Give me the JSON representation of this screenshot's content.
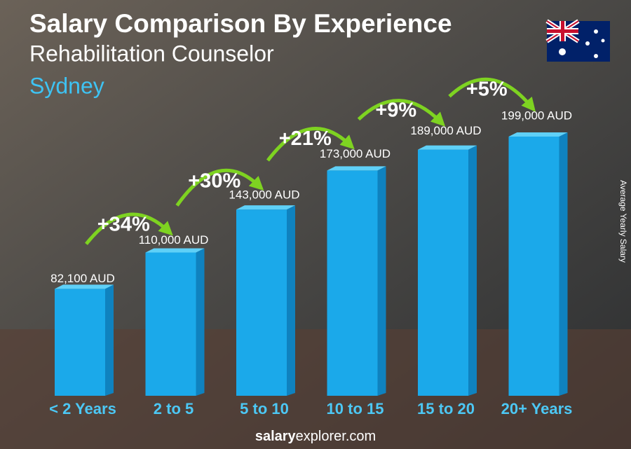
{
  "chart_data": {
    "type": "bar",
    "title": "Salary Comparison By Experience",
    "subtitle": "Rehabilitation Counselor",
    "city": "Sydney",
    "y_axis_label": "Average Yearly Salary",
    "categories": [
      "< 2 Years",
      "2 to 5",
      "5 to 10",
      "10 to 15",
      "15 to 20",
      "20+ Years"
    ],
    "values": [
      82100,
      110000,
      143000,
      173000,
      189000,
      199000
    ],
    "value_labels": [
      "82,100 AUD",
      "110,000 AUD",
      "143,000 AUD",
      "173,000 AUD",
      "189,000 AUD",
      "199,000 AUD"
    ],
    "increases": [
      34,
      30,
      21,
      9,
      5
    ],
    "increase_labels": [
      "+34%",
      "+30%",
      "+21%",
      "+9%",
      "+5%"
    ],
    "color": "#1ba9ea",
    "footer": [
      "salary",
      "explorer.com"
    ]
  }
}
